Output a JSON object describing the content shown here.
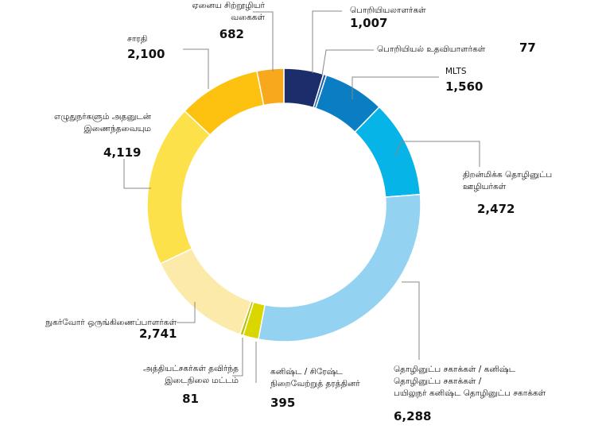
{
  "chart_data": {
    "type": "donut",
    "categories": [
      "பொறியியலாளர்கள்",
      "பொறியியல் உதவியாளர்கள்",
      "MLTS",
      "திறன்மிக்க தொழினுட்ப\nஊழியர்கள்",
      "தொழினுட்ப சகாக்கள் / கனிஷ்ட\nதொழினுட்ப சகாக்கள் /\nபயிலுநர் கனிஷ்ட தொழினுட்ப சகாக்கள்",
      "கனிஷ்ட / சிரேஷ்ட\nநிறைவேற்றுத் தரத்தினர்",
      "அத்தியட்சகர்கள் தவிர்ந்த\nஇடைநிலை மட்டம்",
      "நுகர்வோர் ஒருங்கிணைப்பாளர்கள்",
      "எழுதுநர்களும் அதனுடன்\nஇணைந்தவையும",
      "சாரதி",
      "ஏனைய சிற்றூழியர்\nவகைகள்"
    ],
    "values": [
      1007,
      77,
      1560,
      2472,
      6288,
      395,
      81,
      2741,
      4119,
      2100,
      682
    ],
    "value_labels": [
      "1,007",
      "77",
      "1,560",
      "2,472",
      "6,288",
      "395",
      "81",
      "2,741",
      "4,119",
      "2,100",
      "682"
    ],
    "colors": [
      "#1b2d6b",
      "#1c5ca8",
      "#0b7dc3",
      "#06b4e8",
      "#93d2f1",
      "#d9d600",
      "#b8c400",
      "#fbeaa9",
      "#fde14a",
      "#fdc210",
      "#f8a81c"
    ]
  }
}
